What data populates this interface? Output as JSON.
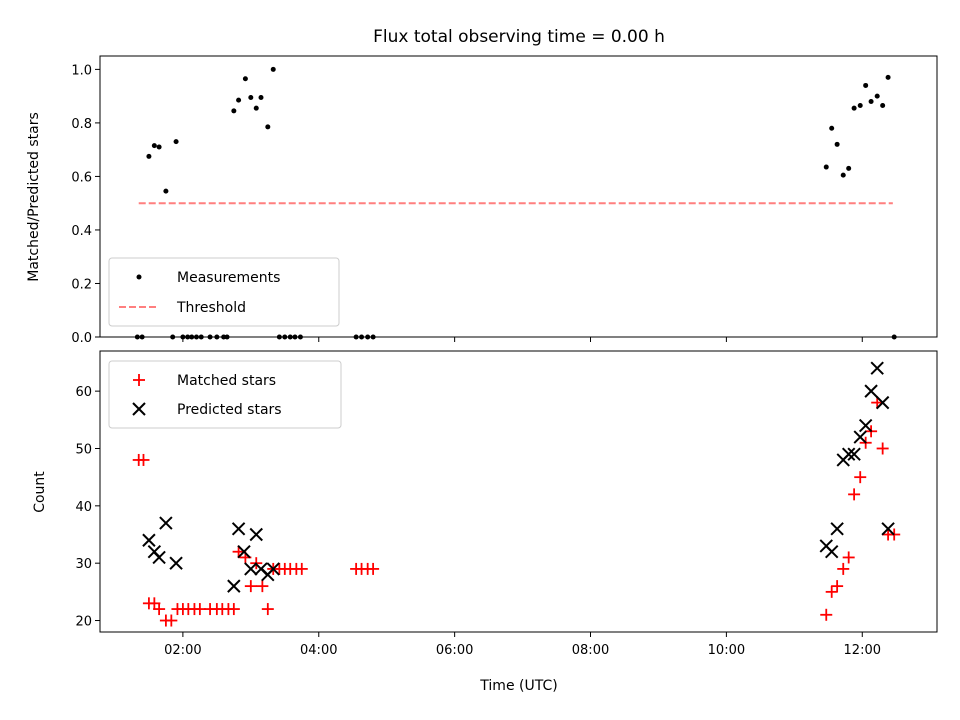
{
  "chart_data": [
    {
      "type": "scatter",
      "title": "Flux total observing time = 0.00 h",
      "xlabel": "",
      "ylabel": "Matched/Predicted stars",
      "xlim": [
        0.78,
        13.1
      ],
      "ylim": [
        0.0,
        1.05
      ],
      "yticks": [
        0.0,
        0.2,
        0.4,
        0.6,
        0.8,
        1.0
      ],
      "ytick_labels": [
        "0.0",
        "0.2",
        "0.4",
        "0.6",
        "0.8",
        "1.0"
      ],
      "legend": {
        "position": "lower-left",
        "entries": [
          "Measurements",
          "Threshold"
        ]
      },
      "threshold": {
        "name": "Threshold",
        "value": 0.5,
        "x_range": [
          1.35,
          12.45
        ],
        "color": "#ff7f7f"
      },
      "series": [
        {
          "name": "Measurements",
          "color": "#000000",
          "x": [
            1.33,
            1.4,
            1.5,
            1.58,
            1.65,
            1.75,
            1.85,
            1.9,
            2.0,
            2.07,
            2.13,
            2.2,
            2.27,
            2.4,
            2.5,
            2.6,
            2.65,
            2.75,
            2.82,
            2.92,
            3.0,
            3.08,
            3.15,
            3.25,
            3.33,
            3.42,
            3.5,
            3.58,
            3.65,
            3.73,
            4.55,
            4.63,
            4.72,
            4.8,
            11.47,
            11.55,
            11.63,
            11.72,
            11.8,
            11.88,
            11.97,
            12.05,
            12.13,
            12.22,
            12.3,
            12.38,
            12.47
          ],
          "y": [
            0.0,
            0.0,
            0.675,
            0.715,
            0.71,
            0.545,
            0.0,
            0.73,
            0.0,
            0.0,
            0.0,
            0.0,
            0.0,
            0.0,
            0.0,
            0.0,
            0.0,
            0.845,
            0.885,
            0.965,
            0.895,
            0.855,
            0.895,
            0.785,
            1.0,
            0.0,
            0.0,
            0.0,
            0.0,
            0.0,
            0.0,
            0.0,
            0.0,
            0.0,
            0.635,
            0.78,
            0.72,
            0.605,
            0.63,
            0.855,
            0.865,
            0.94,
            0.88,
            0.9,
            0.865,
            0.97,
            0.0
          ]
        }
      ]
    },
    {
      "type": "scatter",
      "title": "",
      "xlabel": "Time (UTC)",
      "ylabel": "Count",
      "xlim": [
        0.78,
        13.1
      ],
      "ylim": [
        18,
        67
      ],
      "yticks": [
        20,
        30,
        40,
        50,
        60
      ],
      "ytick_labels": [
        "20",
        "30",
        "40",
        "50",
        "60"
      ],
      "xticks": [
        2,
        4,
        6,
        8,
        10,
        12
      ],
      "xtick_labels": [
        "02:00",
        "04:00",
        "06:00",
        "08:00",
        "10:00",
        "12:00"
      ],
      "legend": {
        "position": "upper-left",
        "entries": [
          "Matched stars",
          "Predicted stars"
        ]
      },
      "series": [
        {
          "name": "Matched stars",
          "color": "#ff0000",
          "marker": "plus",
          "x": [
            1.35,
            1.42,
            1.5,
            1.58,
            1.65,
            1.75,
            1.83,
            1.92,
            2.0,
            2.08,
            2.17,
            2.25,
            2.4,
            2.5,
            2.58,
            2.67,
            2.75,
            2.82,
            2.92,
            3.0,
            3.08,
            3.17,
            3.25,
            3.33,
            3.42,
            3.5,
            3.58,
            3.67,
            3.75,
            4.55,
            4.63,
            4.72,
            4.8,
            11.47,
            11.55,
            11.63,
            11.72,
            11.8,
            11.88,
            11.97,
            12.05,
            12.13,
            12.22,
            12.3,
            12.38,
            12.47
          ],
          "y": [
            48,
            48,
            23,
            23,
            22,
            20,
            20,
            22,
            22,
            22,
            22,
            22,
            22,
            22,
            22,
            22,
            22,
            32,
            31,
            26,
            30,
            26,
            22,
            29,
            29,
            29,
            29,
            29,
            29,
            29,
            29,
            29,
            29,
            21,
            25,
            26,
            29,
            31,
            42,
            45,
            51,
            53,
            58,
            50,
            35,
            35
          ]
        },
        {
          "name": "Predicted stars",
          "color": "#000000",
          "marker": "x",
          "x": [
            1.5,
            1.58,
            1.65,
            1.75,
            1.9,
            2.75,
            2.82,
            2.9,
            3.0,
            3.08,
            3.15,
            3.25,
            3.33,
            11.47,
            11.55,
            11.63,
            11.72,
            11.8,
            11.88,
            11.97,
            12.05,
            12.13,
            12.22,
            12.3,
            12.38
          ],
          "y": [
            34,
            32,
            31,
            37,
            30,
            26,
            36,
            32,
            29,
            35,
            29,
            28,
            29,
            33,
            32,
            36,
            48,
            49,
            49,
            52,
            54,
            60,
            64,
            58,
            36
          ]
        }
      ]
    }
  ]
}
